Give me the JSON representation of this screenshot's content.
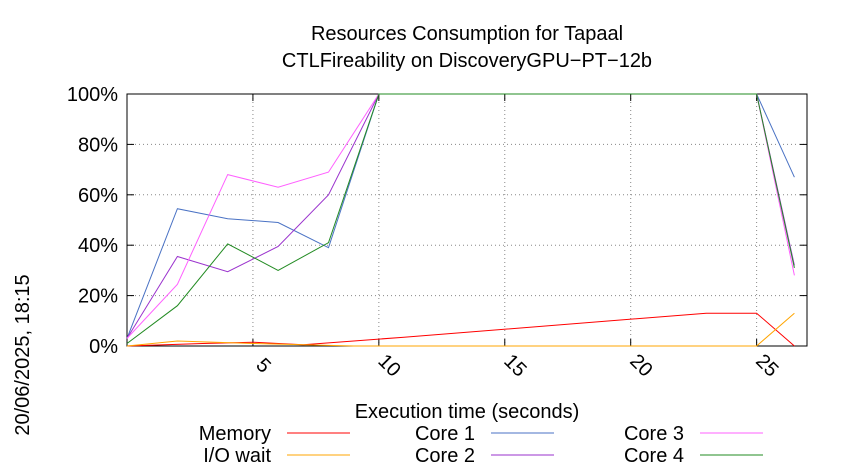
{
  "chart_data": {
    "type": "line",
    "title": [
      "Resources Consumption for Tapaal",
      "CTLFireability on DiscoveryGPU−PT−12b"
    ],
    "xlabel": "Execution time (seconds)",
    "ylabel": "",
    "side_label": "20/06/2025, 18:15",
    "xlim": [
      0,
      27
    ],
    "ylim": [
      0,
      100
    ],
    "xticks": [
      5,
      10,
      15,
      20,
      25
    ],
    "yticks": [
      0,
      20,
      40,
      60,
      80,
      100
    ],
    "ytick_labels": [
      "0%",
      "20%",
      "40%",
      "60%",
      "80%",
      "100%"
    ],
    "grid": true,
    "legend_position": "bottom",
    "series": [
      {
        "name": "Memory",
        "color": "#ff0000",
        "x": [
          0,
          3,
          5,
          7,
          9,
          11,
          23,
          25,
          26.5
        ],
        "y": [
          0,
          1,
          1.5,
          0.5,
          2,
          3.5,
          13,
          13,
          0
        ]
      },
      {
        "name": "I/O wait",
        "color": "#ffa500",
        "x": [
          0,
          2,
          5,
          7,
          9,
          11,
          25,
          26.5
        ],
        "y": [
          0,
          2,
          1,
          0.5,
          0,
          0,
          0,
          13
        ]
      },
      {
        "name": "Core 1",
        "color": "#4a72c4",
        "x": [
          0,
          2,
          4,
          6,
          8,
          10,
          25,
          26.5
        ],
        "y": [
          3,
          54.5,
          50.5,
          49,
          39,
          100,
          100,
          67
        ]
      },
      {
        "name": "Core 2",
        "color": "#9a32cd",
        "x": [
          0,
          2,
          4,
          6,
          8,
          10,
          25,
          26.5
        ],
        "y": [
          3,
          35.5,
          29.5,
          39.5,
          60,
          100,
          100,
          32
        ]
      },
      {
        "name": "Core 3",
        "color": "#ff60ff",
        "x": [
          0,
          2,
          4,
          6,
          8,
          10,
          25,
          26.5
        ],
        "y": [
          3,
          24.5,
          68,
          63,
          69,
          100,
          100,
          28
        ]
      },
      {
        "name": "Core 4",
        "color": "#228b22",
        "x": [
          0,
          2,
          4,
          6,
          8,
          10,
          25,
          26.5
        ],
        "y": [
          1,
          16,
          40.5,
          30,
          41,
          100,
          100,
          31
        ]
      }
    ]
  }
}
